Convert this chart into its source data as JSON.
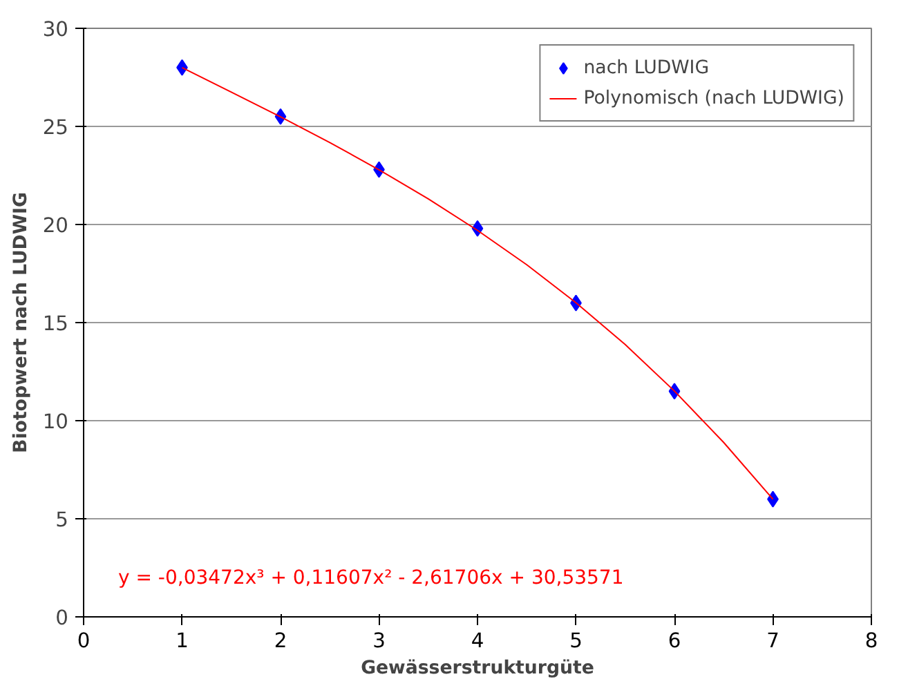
{
  "chart_data": {
    "type": "scatter",
    "xlabel": "Gewässerstrukturgüte",
    "ylabel": "Biotopwert nach LUDWIG",
    "xlim": [
      0,
      8
    ],
    "xticks": [
      0,
      1,
      2,
      3,
      4,
      5,
      6,
      7,
      8
    ],
    "ylim": [
      0,
      30
    ],
    "yticks": [
      0,
      5,
      10,
      15,
      20,
      25,
      30
    ],
    "grid": "y",
    "legend": "top right",
    "series": [
      {
        "name": "nach LUDWIG",
        "color": "#0000ff",
        "marker": "diamond",
        "x": [
          1,
          2,
          3,
          4,
          5,
          6,
          7
        ],
        "values": [
          28,
          25.5,
          22.8,
          19.8,
          16,
          11.5,
          6
        ]
      },
      {
        "name": "Polynomisch (nach LUDWIG)",
        "color": "#ff0000",
        "type": "line",
        "marker": "none",
        "x": [
          1,
          1.5,
          2,
          2.5,
          3,
          3.5,
          4,
          4.5,
          5,
          5.5,
          6,
          6.5,
          7
        ],
        "values": [
          28.0,
          26.75,
          25.49,
          24.18,
          22.79,
          21.31,
          19.7,
          17.95,
          16.01,
          13.88,
          11.51,
          8.89,
          6.0
        ]
      }
    ],
    "annotations": [
      "y = -0,03472x³ + 0,11607x² - 2,61706x + 30,53571"
    ]
  }
}
